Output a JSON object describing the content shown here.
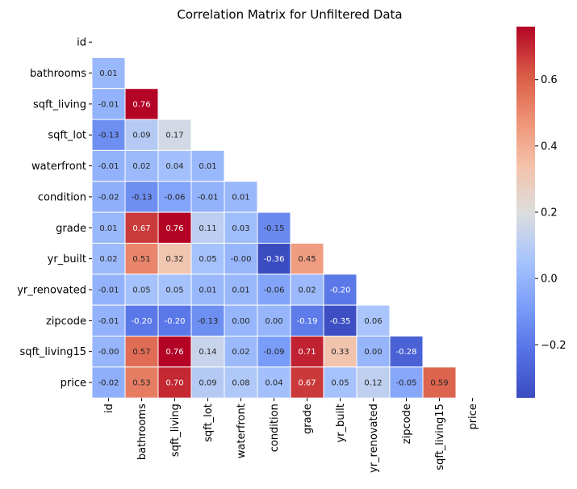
{
  "chart_data": {
    "type": "heatmap",
    "title": "Correlation Matrix for Unfiltered Data",
    "labels": [
      "id",
      "bathrooms",
      "sqft_living",
      "sqft_lot",
      "waterfront",
      "condition",
      "grade",
      "yr_built",
      "yr_renovated",
      "zipcode",
      "sqft_living15",
      "price"
    ],
    "mask": "upper triangle including diagonal",
    "values": [
      [],
      [
        "0.01"
      ],
      [
        "-0.01",
        "0.76"
      ],
      [
        "-0.13",
        "0.09",
        "0.17"
      ],
      [
        "-0.01",
        "0.02",
        "0.04",
        "0.01"
      ],
      [
        "-0.02",
        "-0.13",
        "-0.06",
        "-0.01",
        "0.01"
      ],
      [
        "0.01",
        "0.67",
        "0.76",
        "0.11",
        "0.03",
        "-0.15"
      ],
      [
        "0.02",
        "0.51",
        "0.32",
        "0.05",
        "-0.00",
        "-0.36",
        "0.45"
      ],
      [
        "-0.01",
        "0.05",
        "0.05",
        "0.01",
        "0.01",
        "-0.06",
        "0.02",
        "-0.20"
      ],
      [
        "-0.01",
        "-0.20",
        "-0.20",
        "-0.13",
        "0.00",
        "0.00",
        "-0.19",
        "-0.35",
        "0.06"
      ],
      [
        "-0.00",
        "0.57",
        "0.76",
        "0.14",
        "0.02",
        "-0.09",
        "0.71",
        "0.33",
        "0.00",
        "-0.28"
      ],
      [
        "-0.02",
        "0.53",
        "0.70",
        "0.09",
        "0.08",
        "0.04",
        "0.67",
        "0.05",
        "0.12",
        "-0.05",
        "0.59"
      ]
    ],
    "colormap": "coolwarm",
    "vmin": -0.36,
    "vmax": 0.76,
    "colorbar_ticks": [
      "-0.2",
      "0.0",
      "0.2",
      "0.4",
      "0.6"
    ],
    "annotated": true
  }
}
